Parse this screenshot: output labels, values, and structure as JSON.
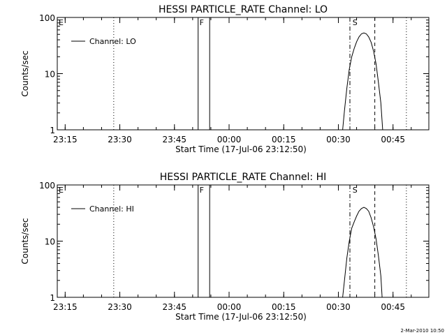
{
  "footer": {
    "date_stamp": "2-Mar-2010 10:50"
  },
  "chart_data": [
    {
      "type": "line",
      "title": "HESSI PARTICLE_RATE Channel: LO",
      "xlabel": "Start Time (17-Jul-06 23:12:50)",
      "ylabel": "Counts/sec",
      "y_scale": "log",
      "ylim": [
        1,
        100
      ],
      "xlim": [
        "23:12:50",
        "00:54:50"
      ],
      "x_ticks": [
        "23:15",
        "23:30",
        "23:45",
        "00:00",
        "00:15",
        "00:30",
        "00:45"
      ],
      "y_ticks": [
        "1",
        "10",
        "100"
      ],
      "legend": {
        "position": "top-left",
        "entries": [
          "Channel: LO"
        ]
      },
      "grid": false,
      "markers": [
        {
          "label": "E",
          "time": "23:12:50",
          "style": "none"
        },
        {
          "label": "",
          "time": "23:28:20",
          "style": "dotted"
        },
        {
          "label": "F",
          "time": "23:51:30",
          "style": "solid"
        },
        {
          "label": "",
          "time": "23:54:40",
          "style": "solid"
        },
        {
          "label": "",
          "time": "00:33:10",
          "style": "dashdot"
        },
        {
          "label": "S",
          "time": "00:33:30",
          "style": "none"
        },
        {
          "label": "",
          "time": "00:40:00",
          "style": "dashed"
        },
        {
          "label": "",
          "time": "00:48:40",
          "style": "dotted"
        }
      ],
      "series": [
        {
          "name": "Channel: LO",
          "points": [
            [
              "00:31:10",
              1.0
            ],
            [
              "00:31:40",
              2.2
            ],
            [
              "00:32:20",
              5.5
            ],
            [
              "00:33:00",
              12
            ],
            [
              "00:33:40",
              20
            ],
            [
              "00:34:20",
              28
            ],
            [
              "00:35:00",
              37
            ],
            [
              "00:35:40",
              45
            ],
            [
              "00:36:20",
              51
            ],
            [
              "00:37:00",
              53
            ],
            [
              "00:37:40",
              51
            ],
            [
              "00:38:20",
              45
            ],
            [
              "00:39:00",
              36
            ],
            [
              "00:39:40",
              25
            ],
            [
              "00:40:20",
              15
            ],
            [
              "00:41:00",
              7
            ],
            [
              "00:41:40",
              3
            ],
            [
              "00:42:10",
              1.0
            ]
          ]
        }
      ]
    },
    {
      "type": "line",
      "title": "HESSI PARTICLE_RATE Channel: HI",
      "xlabel": "Start Time (17-Jul-06 23:12:50)",
      "ylabel": "Counts/sec",
      "y_scale": "log",
      "ylim": [
        1,
        100
      ],
      "xlim": [
        "23:12:50",
        "00:54:50"
      ],
      "x_ticks": [
        "23:15",
        "23:30",
        "23:45",
        "00:00",
        "00:15",
        "00:30",
        "00:45"
      ],
      "y_ticks": [
        "1",
        "10",
        "100"
      ],
      "legend": {
        "position": "top-left",
        "entries": [
          "Channel: HI"
        ]
      },
      "grid": false,
      "markers": [
        {
          "label": "E",
          "time": "23:12:50",
          "style": "none"
        },
        {
          "label": "",
          "time": "23:28:20",
          "style": "dotted"
        },
        {
          "label": "F",
          "time": "23:51:30",
          "style": "solid"
        },
        {
          "label": "",
          "time": "23:54:40",
          "style": "solid"
        },
        {
          "label": "",
          "time": "00:33:10",
          "style": "dashdot"
        },
        {
          "label": "S",
          "time": "00:33:30",
          "style": "none"
        },
        {
          "label": "",
          "time": "00:40:00",
          "style": "dashed"
        },
        {
          "label": "",
          "time": "00:48:40",
          "style": "dotted"
        }
      ],
      "series": [
        {
          "name": "Channel: HI",
          "points": [
            [
              "00:31:10",
              1.0
            ],
            [
              "00:31:40",
              2.0
            ],
            [
              "00:32:20",
              5.0
            ],
            [
              "00:33:00",
              10
            ],
            [
              "00:33:40",
              17
            ],
            [
              "00:34:20",
              22
            ],
            [
              "00:35:00",
              28
            ],
            [
              "00:35:40",
              34
            ],
            [
              "00:36:20",
              38
            ],
            [
              "00:37:00",
              40
            ],
            [
              "00:37:40",
              38
            ],
            [
              "00:38:20",
              34
            ],
            [
              "00:39:00",
              26
            ],
            [
              "00:39:40",
              18
            ],
            [
              "00:40:20",
              11
            ],
            [
              "00:41:00",
              5.5
            ],
            [
              "00:41:40",
              2.4
            ],
            [
              "00:42:00",
              1.0
            ]
          ]
        }
      ]
    }
  ]
}
